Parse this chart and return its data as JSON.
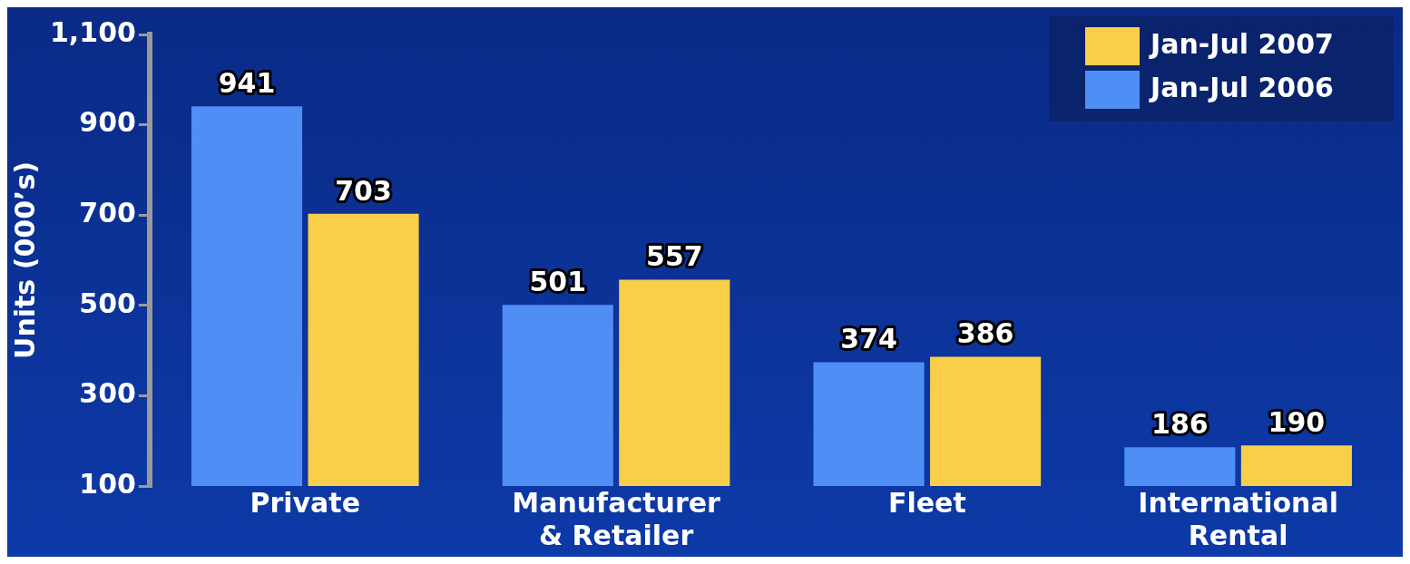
{
  "chart_data": {
    "type": "bar",
    "ylabel": "Units (000’s)",
    "categories": [
      "Private",
      "Manufacturer & Retailer",
      "Fleet",
      "International Rental"
    ],
    "series": [
      {
        "name": "Jan-Jul 2006",
        "color": "#4f8ef5",
        "values": [
          941,
          501,
          374,
          186
        ]
      },
      {
        "name": "Jan-Jul 2007",
        "color": "#f9cf4a",
        "values": [
          703,
          557,
          386,
          190
        ]
      }
    ],
    "ylim": [
      100,
      1100
    ],
    "yticks": [
      100,
      300,
      500,
      700,
      900,
      {
        "value": 1100,
        "label": "1,100"
      }
    ],
    "grid": false,
    "legend": "top right",
    "data_labels": true
  }
}
